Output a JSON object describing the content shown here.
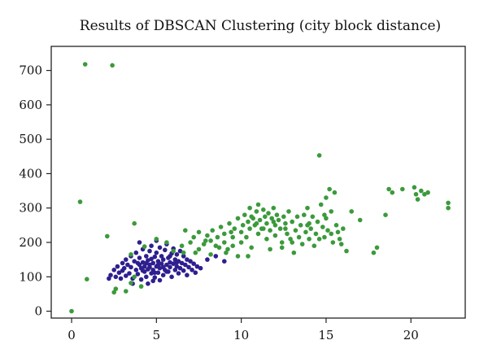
{
  "chart_data": {
    "type": "scatter",
    "title": "Results of DBSCAN Clustering (city block distance)",
    "xlabel": "",
    "ylabel": "",
    "xlim": [
      -1.2,
      23.2
    ],
    "ylim": [
      -20,
      770
    ],
    "x_ticks": [
      0,
      5,
      10,
      15,
      20
    ],
    "y_ticks": [
      0,
      100,
      200,
      300,
      400,
      500,
      600,
      700
    ],
    "grid": false,
    "legend": "none",
    "series": [
      {
        "color": "#2e1f8f",
        "points": [
          [
            2.2,
            95
          ],
          [
            2.3,
            105
          ],
          [
            2.5,
            120
          ],
          [
            2.6,
            100
          ],
          [
            2.7,
            130
          ],
          [
            2.8,
            112
          ],
          [
            2.9,
            95
          ],
          [
            3.0,
            140
          ],
          [
            3.0,
            118
          ],
          [
            3.1,
            125
          ],
          [
            3.2,
            103
          ],
          [
            3.2,
            150
          ],
          [
            3.3,
            135
          ],
          [
            3.4,
            110
          ],
          [
            3.5,
            160
          ],
          [
            3.5,
            128
          ],
          [
            3.6,
            95
          ],
          [
            3.7,
            145
          ],
          [
            3.8,
            120
          ],
          [
            3.8,
            170
          ],
          [
            3.9,
            108
          ],
          [
            4.0,
            135
          ],
          [
            4.0,
            155
          ],
          [
            4.1,
            92
          ],
          [
            4.1,
            125
          ],
          [
            4.2,
            180
          ],
          [
            4.2,
            142
          ],
          [
            4.3,
            115
          ],
          [
            4.3,
            130
          ],
          [
            4.4,
            160
          ],
          [
            4.4,
            100
          ],
          [
            4.5,
            148
          ],
          [
            4.5,
            122
          ],
          [
            4.6,
            175
          ],
          [
            4.6,
            135
          ],
          [
            4.7,
            110
          ],
          [
            4.7,
            190
          ],
          [
            4.8,
            140
          ],
          [
            4.8,
            120
          ],
          [
            4.9,
            158
          ],
          [
            4.9,
            98
          ],
          [
            5.0,
            130
          ],
          [
            5.0,
            170
          ],
          [
            5.1,
            112
          ],
          [
            5.1,
            145
          ],
          [
            5.2,
            185
          ],
          [
            5.2,
            125
          ],
          [
            5.3,
            138
          ],
          [
            5.3,
            160
          ],
          [
            5.4,
            105
          ],
          [
            5.4,
            150
          ],
          [
            5.5,
            120
          ],
          [
            5.5,
            178
          ],
          [
            5.6,
            135
          ],
          [
            5.6,
            195
          ],
          [
            5.7,
            115
          ],
          [
            5.7,
            155
          ],
          [
            5.8,
            142
          ],
          [
            5.8,
            128
          ],
          [
            5.9,
            168
          ],
          [
            5.9,
            100
          ],
          [
            6.0,
            138
          ],
          [
            6.0,
            182
          ],
          [
            6.1,
            120
          ],
          [
            6.1,
            150
          ],
          [
            6.2,
            130
          ],
          [
            6.2,
            165
          ],
          [
            6.3,
            110
          ],
          [
            6.3,
            145
          ],
          [
            6.4,
            175
          ],
          [
            6.4,
            125
          ],
          [
            6.5,
            140
          ],
          [
            6.6,
            118
          ],
          [
            6.6,
            160
          ],
          [
            6.7,
            135
          ],
          [
            6.8,
            150
          ],
          [
            6.8,
            105
          ],
          [
            6.9,
            128
          ],
          [
            7.0,
            145
          ],
          [
            7.1,
            120
          ],
          [
            7.2,
            138
          ],
          [
            7.3,
            112
          ],
          [
            7.4,
            130
          ],
          [
            4.5,
            80
          ],
          [
            4.8,
            88
          ],
          [
            3.6,
            80
          ],
          [
            5.2,
            90
          ],
          [
            4.0,
            200
          ],
          [
            5.0,
            205
          ],
          [
            8.0,
            150
          ],
          [
            8.5,
            160
          ],
          [
            9.0,
            145
          ],
          [
            7.6,
            125
          ],
          [
            4.4,
            140
          ],
          [
            4.6,
            128
          ],
          [
            5.1,
            135
          ],
          [
            5.4,
            128
          ],
          [
            4.2,
            118
          ],
          [
            3.9,
            140
          ],
          [
            4.7,
            152
          ],
          [
            5.6,
            115
          ],
          [
            5.8,
            160
          ],
          [
            6.2,
            142
          ],
          [
            4.9,
            112
          ]
        ]
      },
      {
        "color": "#3b9a3b",
        "points": [
          [
            0.0,
            0
          ],
          [
            0.5,
            318
          ],
          [
            0.8,
            718
          ],
          [
            0.9,
            93
          ],
          [
            2.1,
            218
          ],
          [
            2.4,
            715
          ],
          [
            2.5,
            55
          ],
          [
            2.6,
            65
          ],
          [
            3.2,
            58
          ],
          [
            3.5,
            82
          ],
          [
            3.7,
            100
          ],
          [
            3.5,
            165
          ],
          [
            3.7,
            255
          ],
          [
            4.1,
            72
          ],
          [
            4.3,
            188
          ],
          [
            5.0,
            210
          ],
          [
            5.6,
            200
          ],
          [
            6.0,
            175
          ],
          [
            6.5,
            190
          ],
          [
            6.7,
            235
          ],
          [
            7.0,
            200
          ],
          [
            7.2,
            215
          ],
          [
            7.5,
            180
          ],
          [
            7.5,
            230
          ],
          [
            7.8,
            195
          ],
          [
            8.0,
            220
          ],
          [
            8.2,
            205
          ],
          [
            8.3,
            235
          ],
          [
            8.5,
            190
          ],
          [
            8.6,
            215
          ],
          [
            8.8,
            245
          ],
          [
            9.0,
            200
          ],
          [
            9.0,
            225
          ],
          [
            9.2,
            180
          ],
          [
            9.3,
            255
          ],
          [
            9.5,
            215
          ],
          [
            9.5,
            190
          ],
          [
            9.6,
            240
          ],
          [
            9.8,
            160
          ],
          [
            9.8,
            270
          ],
          [
            10.0,
            230
          ],
          [
            10.0,
            200
          ],
          [
            10.1,
            250
          ],
          [
            10.2,
            280
          ],
          [
            10.3,
            215
          ],
          [
            10.4,
            260
          ],
          [
            10.5,
            240
          ],
          [
            10.5,
            300
          ],
          [
            10.6,
            185
          ],
          [
            10.7,
            270
          ],
          [
            10.8,
            250
          ],
          [
            10.9,
            290
          ],
          [
            11.0,
            225
          ],
          [
            11.0,
            310
          ],
          [
            11.1,
            265
          ],
          [
            11.2,
            240
          ],
          [
            11.3,
            295
          ],
          [
            11.4,
            275
          ],
          [
            11.5,
            210
          ],
          [
            11.5,
            255
          ],
          [
            11.6,
            285
          ],
          [
            11.7,
            235
          ],
          [
            11.8,
            270
          ],
          [
            11.9,
            300
          ],
          [
            12.0,
            250
          ],
          [
            12.0,
            220
          ],
          [
            12.1,
            280
          ],
          [
            12.2,
            265
          ],
          [
            12.3,
            240
          ],
          [
            12.4,
            200
          ],
          [
            12.5,
            275
          ],
          [
            12.6,
            255
          ],
          [
            12.7,
            225
          ],
          [
            12.8,
            290
          ],
          [
            12.9,
            210
          ],
          [
            13.0,
            260
          ],
          [
            13.0,
            200
          ],
          [
            13.2,
            235
          ],
          [
            13.3,
            275
          ],
          [
            13.4,
            215
          ],
          [
            13.5,
            250
          ],
          [
            13.6,
            195
          ],
          [
            13.7,
            280
          ],
          [
            13.8,
            230
          ],
          [
            13.9,
            300
          ],
          [
            14.0,
            210
          ],
          [
            14.0,
            255
          ],
          [
            14.1,
            240
          ],
          [
            14.2,
            275
          ],
          [
            14.3,
            190
          ],
          [
            14.4,
            225
          ],
          [
            14.5,
            260
          ],
          [
            14.6,
            453
          ],
          [
            14.7,
            310
          ],
          [
            14.8,
            245
          ],
          [
            14.9,
            215
          ],
          [
            15.0,
            270
          ],
          [
            15.0,
            330
          ],
          [
            15.1,
            235
          ],
          [
            15.2,
            355
          ],
          [
            15.3,
            290
          ],
          [
            15.4,
            200
          ],
          [
            15.5,
            345
          ],
          [
            15.6,
            250
          ],
          [
            15.7,
            230
          ],
          [
            15.8,
            210
          ],
          [
            15.9,
            195
          ],
          [
            16.0,
            240
          ],
          [
            16.2,
            175
          ],
          [
            16.5,
            290
          ],
          [
            17.0,
            265
          ],
          [
            17.8,
            170
          ],
          [
            18.0,
            185
          ],
          [
            18.5,
            280
          ],
          [
            18.7,
            355
          ],
          [
            18.9,
            345
          ],
          [
            19.5,
            355
          ],
          [
            20.2,
            360
          ],
          [
            20.3,
            340
          ],
          [
            20.4,
            325
          ],
          [
            20.6,
            350
          ],
          [
            20.8,
            340
          ],
          [
            21.0,
            345
          ],
          [
            22.2,
            315
          ],
          [
            22.2,
            300
          ],
          [
            6.6,
            170
          ],
          [
            7.3,
            170
          ],
          [
            8.2,
            165
          ],
          [
            9.1,
            170
          ],
          [
            10.4,
            160
          ],
          [
            11.7,
            180
          ],
          [
            12.4,
            185
          ],
          [
            13.1,
            170
          ],
          [
            14.6,
            210
          ],
          [
            15.3,
            225
          ],
          [
            10.9,
            255
          ],
          [
            11.3,
            240
          ],
          [
            12.6,
            240
          ],
          [
            13.9,
            250
          ],
          [
            14.9,
            280
          ],
          [
            7.9,
            205
          ],
          [
            8.7,
            185
          ],
          [
            9.4,
            230
          ],
          [
            10.6,
            275
          ],
          [
            11.9,
            260
          ]
        ]
      }
    ]
  }
}
